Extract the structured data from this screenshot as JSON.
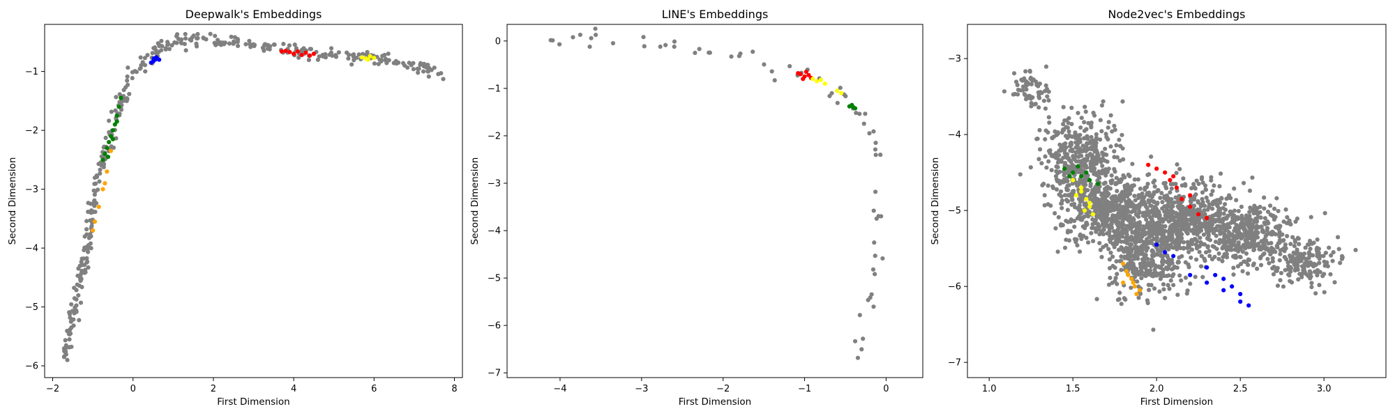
{
  "chart_data": [
    {
      "type": "scatter",
      "title": "Deepwalk's Embeddings",
      "xlabel": "First Dimension",
      "ylabel": "Second Dimension",
      "xlim": [
        -2.2,
        8.2
      ],
      "ylim": [
        -6.2,
        -0.2
      ],
      "xticks": [
        -2,
        0,
        2,
        4,
        6,
        8
      ],
      "yticks": [
        -6,
        -5,
        -4,
        -3,
        -2,
        -1
      ],
      "grid": false,
      "background_color": "#808080",
      "background_curve": [
        [
          -1.75,
          -5.9
        ],
        [
          -1.6,
          -5.55
        ],
        [
          -1.45,
          -5.1
        ],
        [
          -1.3,
          -4.55
        ],
        [
          -1.15,
          -4.0
        ],
        [
          -1.0,
          -3.45
        ],
        [
          -0.85,
          -2.9
        ],
        [
          -0.7,
          -2.45
        ],
        [
          -0.5,
          -1.95
        ],
        [
          -0.3,
          -1.55
        ],
        [
          -0.05,
          -1.1
        ],
        [
          0.3,
          -0.8
        ],
        [
          0.7,
          -0.58
        ],
        [
          1.2,
          -0.47
        ],
        [
          2.0,
          -0.48
        ],
        [
          3.0,
          -0.57
        ],
        [
          4.0,
          -0.65
        ],
        [
          5.0,
          -0.7
        ],
        [
          6.0,
          -0.76
        ],
        [
          6.8,
          -0.84
        ],
        [
          7.7,
          -1.05
        ]
      ],
      "groups": [
        {
          "color": "#0000ff",
          "points": [
            [
              0.5,
              -0.83
            ],
            [
              0.55,
              -0.8
            ],
            [
              0.6,
              -0.78
            ],
            [
              0.45,
              -0.85
            ],
            [
              0.58,
              -0.76
            ],
            [
              0.65,
              -0.8
            ],
            [
              0.52,
              -0.78
            ]
          ]
        },
        {
          "color": "#ff0000",
          "points": [
            [
              3.9,
              -0.67
            ],
            [
              4.0,
              -0.7
            ],
            [
              4.1,
              -0.66
            ],
            [
              4.2,
              -0.72
            ],
            [
              4.3,
              -0.68
            ],
            [
              3.8,
              -0.65
            ],
            [
              4.4,
              -0.73
            ],
            [
              4.5,
              -0.7
            ],
            [
              3.7,
              -0.66
            ]
          ]
        },
        {
          "color": "#ffff00",
          "points": [
            [
              5.7,
              -0.76
            ],
            [
              5.8,
              -0.78
            ],
            [
              5.9,
              -0.74
            ],
            [
              6.0,
              -0.77
            ],
            [
              5.85,
              -0.8
            ]
          ]
        },
        {
          "color": "#008000",
          "points": [
            [
              -0.3,
              -1.45
            ],
            [
              -0.35,
              -1.6
            ],
            [
              -0.4,
              -1.75
            ],
            [
              -0.45,
              -1.9
            ],
            [
              -0.5,
              -2.0
            ],
            [
              -0.55,
              -2.1
            ],
            [
              -0.6,
              -2.2
            ],
            [
              -0.65,
              -2.3
            ],
            [
              -0.7,
              -2.4
            ],
            [
              -0.75,
              -2.5
            ],
            [
              -0.5,
              -2.15
            ],
            [
              -0.4,
              -1.85
            ],
            [
              -0.62,
              -2.45
            ]
          ]
        },
        {
          "color": "#ffa500",
          "points": [
            [
              -0.55,
              -2.35
            ],
            [
              -0.65,
              -2.7
            ],
            [
              -0.75,
              -3.0
            ],
            [
              -0.85,
              -3.3
            ],
            [
              -0.95,
              -3.55
            ],
            [
              -1.0,
              -3.7
            ],
            [
              -0.7,
              -2.9
            ]
          ]
        }
      ]
    },
    {
      "type": "scatter",
      "title": "LINE's Embeddings",
      "xlabel": "First Dimension",
      "ylabel": "Second Dimension",
      "xlim": [
        -4.65,
        0.45
      ],
      "ylim": [
        -7.1,
        0.35
      ],
      "xticks": [
        -4,
        -3,
        -2,
        -1,
        0
      ],
      "yticks": [
        -7,
        -6,
        -5,
        -4,
        -3,
        -2,
        -1,
        0
      ],
      "grid": false,
      "background_color": "#808080",
      "background_curve": [
        [
          -4.4,
          0.0
        ],
        [
          -3.8,
          0.05
        ],
        [
          -3.2,
          0.0
        ],
        [
          -2.6,
          -0.1
        ],
        [
          -2.0,
          -0.3
        ],
        [
          -1.5,
          -0.45
        ],
        [
          -1.1,
          -0.7
        ],
        [
          -0.8,
          -0.9
        ],
        [
          -0.5,
          -1.2
        ],
        [
          -0.35,
          -1.45
        ],
        [
          -0.15,
          -2.0
        ],
        [
          -0.1,
          -3.0
        ],
        [
          -0.08,
          -4.0
        ],
        [
          -0.15,
          -5.0
        ],
        [
          -0.3,
          -6.0
        ],
        [
          -0.35,
          -6.7
        ]
      ],
      "groups": [
        {
          "color": "#ff0000",
          "points": [
            [
              -1.05,
              -0.7
            ],
            [
              -1.0,
              -0.75
            ],
            [
              -0.95,
              -0.72
            ],
            [
              -1.02,
              -0.8
            ],
            [
              -0.98,
              -0.65
            ],
            [
              -0.92,
              -0.78
            ],
            [
              -1.08,
              -0.68
            ]
          ]
        },
        {
          "color": "#ffff00",
          "points": [
            [
              -0.9,
              -0.8
            ],
            [
              -0.85,
              -0.85
            ],
            [
              -0.8,
              -0.82
            ],
            [
              -0.6,
              -1.05
            ],
            [
              -0.75,
              -0.9
            ],
            [
              -0.55,
              -1.1
            ]
          ]
        },
        {
          "color": "#008000",
          "points": [
            [
              -0.42,
              -1.35
            ],
            [
              -0.4,
              -1.4
            ],
            [
              -0.38,
              -1.42
            ],
            [
              -0.45,
              -1.38
            ]
          ]
        }
      ]
    },
    {
      "type": "scatter",
      "title": "Node2vec's Embeddings",
      "xlabel": "First Dimension",
      "ylabel": "Second Dimension",
      "xlim": [
        0.87,
        3.37
      ],
      "ylim": [
        -7.2,
        -2.55
      ],
      "xticks": [
        1.0,
        1.5,
        2.0,
        2.5,
        3.0
      ],
      "yticks": [
        -7,
        -6,
        -5,
        -4,
        -3
      ],
      "grid": false,
      "background_color": "#808080",
      "background_regions": [
        {
          "center": [
            1.55,
            -4.35
          ],
          "spread": [
            0.16,
            0.45
          ],
          "weight": 420
        },
        {
          "center": [
            1.75,
            -5.0
          ],
          "spread": [
            0.2,
            0.35
          ],
          "weight": 520
        },
        {
          "center": [
            1.95,
            -5.55
          ],
          "spread": [
            0.18,
            0.4
          ],
          "weight": 420
        },
        {
          "center": [
            2.2,
            -5.1
          ],
          "spread": [
            0.22,
            0.35
          ],
          "weight": 480
        },
        {
          "center": [
            2.55,
            -5.3
          ],
          "spread": [
            0.2,
            0.3
          ],
          "weight": 380
        },
        {
          "center": [
            2.9,
            -5.7
          ],
          "spread": [
            0.15,
            0.2
          ],
          "weight": 160
        },
        {
          "center": [
            1.25,
            -3.4
          ],
          "spread": [
            0.08,
            0.2
          ],
          "weight": 60
        }
      ],
      "groups": [
        {
          "color": "#ff0000",
          "points": [
            [
              1.95,
              -4.4
            ],
            [
              2.0,
              -4.45
            ],
            [
              2.05,
              -4.5
            ],
            [
              2.1,
              -4.55
            ],
            [
              2.12,
              -4.7
            ],
            [
              2.15,
              -4.85
            ],
            [
              2.2,
              -4.95
            ],
            [
              2.25,
              -5.05
            ],
            [
              2.3,
              -5.1
            ],
            [
              2.2,
              -4.8
            ],
            [
              2.08,
              -4.6
            ]
          ]
        },
        {
          "color": "#ffff00",
          "points": [
            [
              1.5,
              -4.6
            ],
            [
              1.55,
              -4.75
            ],
            [
              1.58,
              -4.85
            ],
            [
              1.6,
              -4.95
            ],
            [
              1.62,
              -5.05
            ],
            [
              1.57,
              -5.0
            ],
            [
              1.52,
              -4.8
            ],
            [
              1.55,
              -4.7
            ],
            [
              1.6,
              -4.9
            ]
          ]
        },
        {
          "color": "#008000",
          "points": [
            [
              1.45,
              -4.45
            ],
            [
              1.5,
              -4.5
            ],
            [
              1.55,
              -4.55
            ],
            [
              1.6,
              -4.6
            ],
            [
              1.65,
              -4.65
            ],
            [
              1.48,
              -4.55
            ],
            [
              1.53,
              -4.42
            ],
            [
              1.58,
              -4.5
            ]
          ]
        },
        {
          "color": "#ffa500",
          "points": [
            [
              1.8,
              -5.7
            ],
            [
              1.82,
              -5.8
            ],
            [
              1.85,
              -5.9
            ],
            [
              1.87,
              -6.0
            ],
            [
              1.88,
              -6.1
            ],
            [
              1.83,
              -5.85
            ],
            [
              1.86,
              -5.95
            ],
            [
              1.8,
              -5.95
            ],
            [
              1.9,
              -6.05
            ]
          ]
        },
        {
          "color": "#0000ff",
          "points": [
            [
              2.3,
              -5.75
            ],
            [
              2.35,
              -5.85
            ],
            [
              2.4,
              -5.9
            ],
            [
              2.45,
              -6.0
            ],
            [
              2.5,
              -6.1
            ],
            [
              2.55,
              -6.25
            ],
            [
              2.5,
              -6.2
            ],
            [
              2.3,
              -5.95
            ],
            [
              2.4,
              -6.05
            ],
            [
              2.2,
              -5.85
            ],
            [
              2.0,
              -5.45
            ],
            [
              2.05,
              -5.55
            ],
            [
              2.1,
              -5.6
            ]
          ]
        }
      ]
    }
  ]
}
